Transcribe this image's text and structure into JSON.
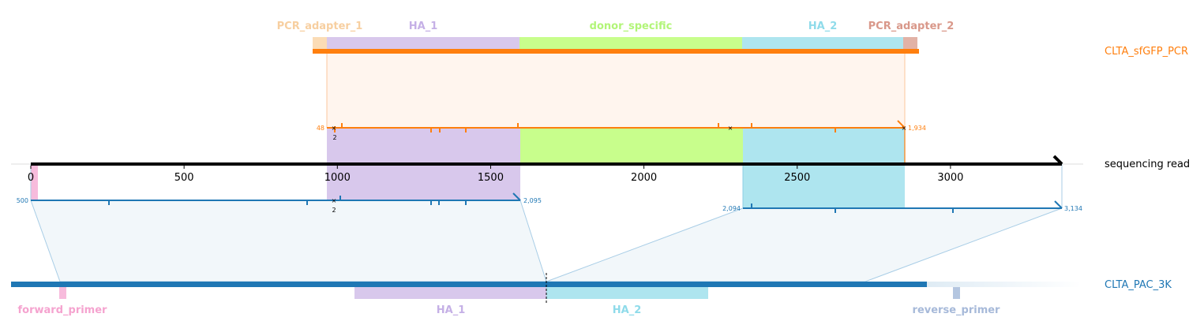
{
  "colors": {
    "pcr": "#ff7f0e",
    "pcr_fill": "#fff5ee",
    "ref": "#1f77b4",
    "ref_fill": "#f2f7fa",
    "adapter1": "#fbdcb6",
    "adapter1_text": "#f7cfa0",
    "ha1": "#d8c8ec",
    "ha1_text": "#c5b0e6",
    "donor": "#c8fe8c",
    "donor_text": "#b2f578",
    "ha2": "#aee5ef",
    "ha2_text": "#8fdbea",
    "adapter2": "#e2b2a6",
    "adapter2_text": "#d9988a",
    "forward": "#f7bbdc",
    "forward_text": "#f5a3cf",
    "reverse": "#b4c6e0",
    "reverse_text": "#a6b9d9",
    "axis": "#000000"
  },
  "tracks": {
    "pcr_name": "CLTA_sfGFP_PCR",
    "read_name": "sequencing read",
    "ref_name": "CLTA_PAC_3K"
  },
  "pcr_features": [
    {
      "name": "PCR_adapter_1",
      "color_key": "adapter1"
    },
    {
      "name": "HA_1",
      "color_key": "ha1"
    },
    {
      "name": "donor_specific",
      "color_key": "donor"
    },
    {
      "name": "HA_2",
      "color_key": "ha2"
    },
    {
      "name": "PCR_adapter_2",
      "color_key": "adapter2"
    }
  ],
  "ref_features": [
    {
      "name": "forward_primer",
      "color_key": "forward"
    },
    {
      "name": "HA_1",
      "color_key": "ha1"
    },
    {
      "name": "HA_2",
      "color_key": "ha2"
    },
    {
      "name": "reverse_primer",
      "color_key": "reverse"
    }
  ],
  "read_axis": {
    "ticks": [
      "0",
      "500",
      "1000",
      "1500",
      "2000",
      "2500",
      "3000"
    ]
  },
  "alignments": {
    "pcr": {
      "start": "48",
      "end": "1,934",
      "mismatch_count": "2"
    },
    "ref_left": {
      "start": "500",
      "end": "2,095",
      "mismatch_count": "2"
    },
    "ref_right": {
      "start": "2,094",
      "end": "3,134"
    }
  }
}
